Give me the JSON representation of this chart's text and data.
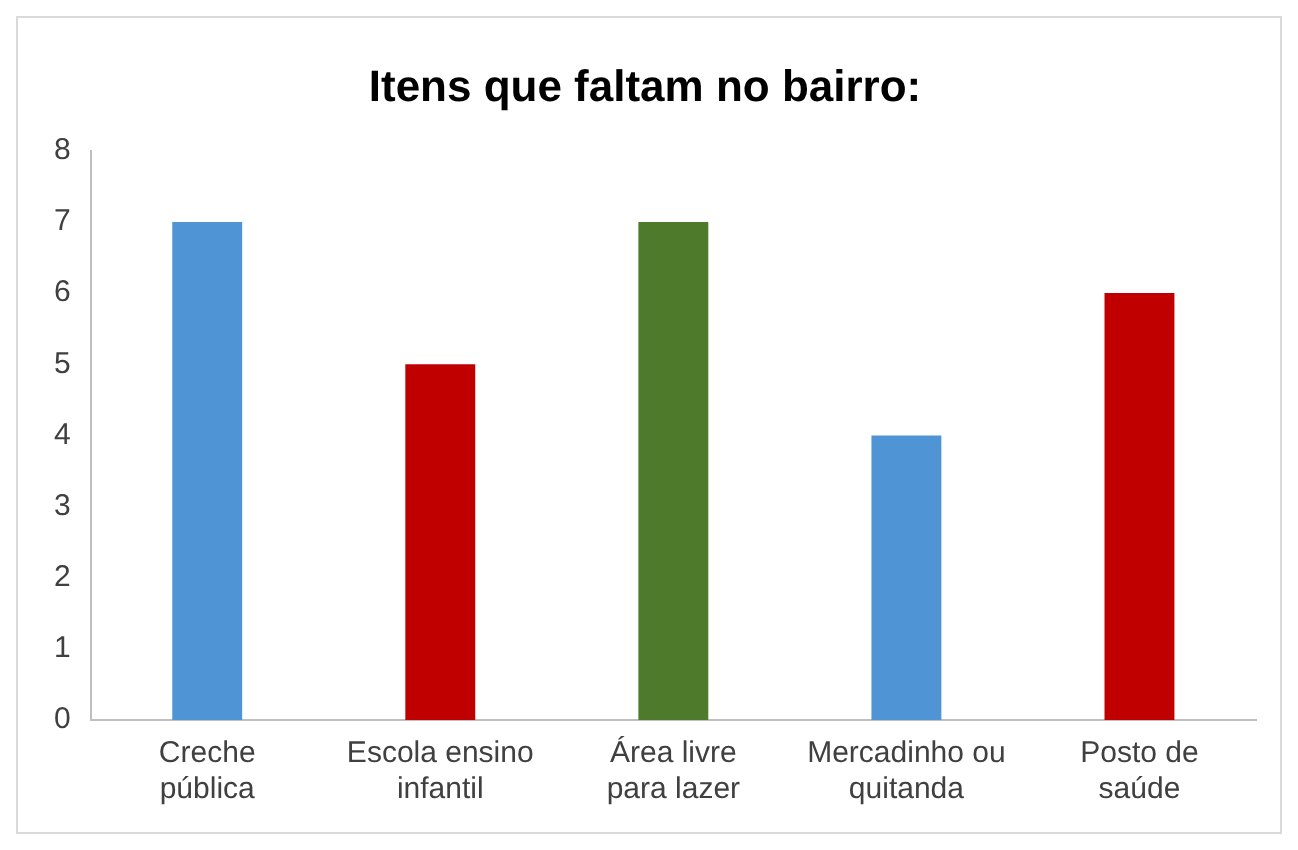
{
  "chart_data": {
    "type": "bar",
    "title": "Itens que faltam no bairro:",
    "categories": [
      "Creche pública",
      "Escola ensino infantil",
      "Área livre para lazer",
      "Mercadinho ou quitanda",
      "Posto de saúde"
    ],
    "values": [
      7,
      5,
      7,
      4,
      6
    ],
    "colors": [
      "#4f95d6",
      "#c00000",
      "#4e7b2b",
      "#4f95d6",
      "#c00000"
    ],
    "ylim": [
      0,
      8
    ],
    "yticks": [
      0,
      1,
      2,
      3,
      4,
      5,
      6,
      7,
      8
    ],
    "grid": false,
    "legend": false
  }
}
